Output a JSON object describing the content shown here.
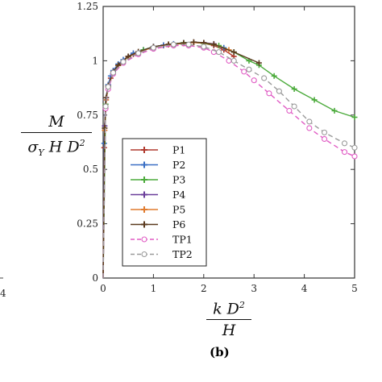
{
  "chart_data": {
    "type": "line",
    "panel_label": "(b)",
    "ylabel": {
      "num": "M",
      "den_sigma": "σ",
      "den_sub": "Y",
      "den_rest": " H D",
      "den_sup": "2"
    },
    "xlabel": {
      "num": "k D",
      "num_sup": "2",
      "den": "H"
    },
    "xlim": [
      0,
      5
    ],
    "ylim": [
      0,
      1.25
    ],
    "xticks": [
      "0",
      "1",
      "2",
      "3",
      "4",
      "5"
    ],
    "yticks": [
      "0",
      "0.25",
      "0.5",
      "0.75",
      "1",
      "1.25"
    ],
    "grid": false,
    "legend_position": "lower-left inside",
    "edge_left_tick": "4",
    "series": [
      {
        "name": "P1",
        "color": "#b03a2e",
        "style": "solid",
        "marker": "plus",
        "x": [
          0,
          0.02,
          0.05,
          0.1,
          0.15,
          0.2,
          0.3,
          0.4,
          0.5,
          0.6,
          0.8,
          1.0,
          1.2,
          1.4,
          1.6,
          1.8,
          2.0,
          2.2,
          2.4,
          2.6
        ],
        "y": [
          0,
          0.6,
          0.8,
          0.88,
          0.92,
          0.95,
          0.98,
          1.0,
          1.02,
          1.03,
          1.05,
          1.06,
          1.07,
          1.075,
          1.08,
          1.085,
          1.08,
          1.07,
          1.05,
          1.02
        ]
      },
      {
        "name": "P2",
        "color": "#3a6fc4",
        "style": "solid",
        "marker": "plus",
        "x": [
          0,
          0.02,
          0.05,
          0.1,
          0.15,
          0.2,
          0.3,
          0.4,
          0.5,
          0.6,
          0.8,
          1.0,
          1.2,
          1.4,
          1.6,
          1.8,
          2.0,
          2.2,
          2.4
        ],
        "y": [
          0,
          0.62,
          0.82,
          0.89,
          0.93,
          0.955,
          0.985,
          1.005,
          1.02,
          1.035,
          1.05,
          1.065,
          1.072,
          1.078,
          1.082,
          1.085,
          1.082,
          1.075,
          1.06
        ]
      },
      {
        "name": "P3",
        "color": "#4cab3c",
        "style": "solid",
        "marker": "plus",
        "x": [
          0,
          0.05,
          0.1,
          0.2,
          0.3,
          0.5,
          0.8,
          1.0,
          1.3,
          1.6,
          1.8,
          2.0,
          2.3,
          2.6,
          2.9,
          3.1,
          3.4,
          3.8,
          4.2,
          4.6,
          5.0
        ],
        "y": [
          0,
          0.8,
          0.88,
          0.95,
          0.98,
          1.02,
          1.05,
          1.065,
          1.075,
          1.083,
          1.085,
          1.08,
          1.07,
          1.04,
          1.0,
          0.98,
          0.93,
          0.87,
          0.82,
          0.77,
          0.74
        ]
      },
      {
        "name": "P4",
        "color": "#6a3d9a",
        "style": "solid",
        "marker": "plus",
        "x": [
          0,
          0.03,
          0.06,
          0.1,
          0.2,
          0.3,
          0.5,
          0.7,
          1.0,
          1.3,
          1.6,
          1.8,
          2.0,
          2.2
        ],
        "y": [
          0,
          0.7,
          0.83,
          0.885,
          0.95,
          0.98,
          1.02,
          1.04,
          1.065,
          1.075,
          1.082,
          1.085,
          1.083,
          1.078
        ]
      },
      {
        "name": "P5",
        "color": "#e07b2e",
        "style": "solid",
        "marker": "plus",
        "x": [
          0,
          0.03,
          0.06,
          0.1,
          0.2,
          0.3,
          0.5,
          0.7,
          1.0,
          1.3,
          1.6,
          1.8,
          2.0,
          2.2,
          2.5
        ],
        "y": [
          0,
          0.68,
          0.82,
          0.88,
          0.945,
          0.978,
          1.018,
          1.04,
          1.062,
          1.074,
          1.08,
          1.084,
          1.082,
          1.076,
          1.05
        ]
      },
      {
        "name": "P6",
        "color": "#5a3a1e",
        "style": "solid",
        "marker": "plus",
        "x": [
          0,
          0.03,
          0.06,
          0.1,
          0.2,
          0.3,
          0.5,
          0.7,
          1.0,
          1.3,
          1.6,
          1.8,
          2.0,
          2.2,
          2.6,
          3.1
        ],
        "y": [
          0,
          0.69,
          0.83,
          0.885,
          0.948,
          0.98,
          1.02,
          1.042,
          1.064,
          1.076,
          1.082,
          1.086,
          1.083,
          1.076,
          1.04,
          0.99
        ]
      },
      {
        "name": "TP1",
        "color": "#e05bc4",
        "style": "dashed",
        "marker": "circle",
        "x": [
          0,
          0.05,
          0.1,
          0.2,
          0.4,
          0.7,
          1.0,
          1.4,
          1.7,
          2.0,
          2.2,
          2.5,
          2.8,
          3.0,
          3.3,
          3.7,
          4.1,
          4.4,
          4.8,
          5.0
        ],
        "y": [
          0,
          0.78,
          0.87,
          0.94,
          0.99,
          1.03,
          1.055,
          1.07,
          1.07,
          1.06,
          1.04,
          1.0,
          0.95,
          0.91,
          0.85,
          0.77,
          0.69,
          0.64,
          0.58,
          0.56
        ]
      },
      {
        "name": "TP2",
        "color": "#9a9a9a",
        "style": "dashed",
        "marker": "circle",
        "x": [
          0,
          0.05,
          0.1,
          0.2,
          0.4,
          0.7,
          1.0,
          1.4,
          1.7,
          2.0,
          2.3,
          2.6,
          2.9,
          3.2,
          3.5,
          3.8,
          4.1,
          4.4,
          4.8,
          5.0
        ],
        "y": [
          0,
          0.79,
          0.88,
          0.945,
          0.995,
          1.035,
          1.06,
          1.075,
          1.075,
          1.065,
          1.04,
          1.0,
          0.96,
          0.92,
          0.86,
          0.79,
          0.72,
          0.67,
          0.62,
          0.6
        ]
      }
    ]
  }
}
